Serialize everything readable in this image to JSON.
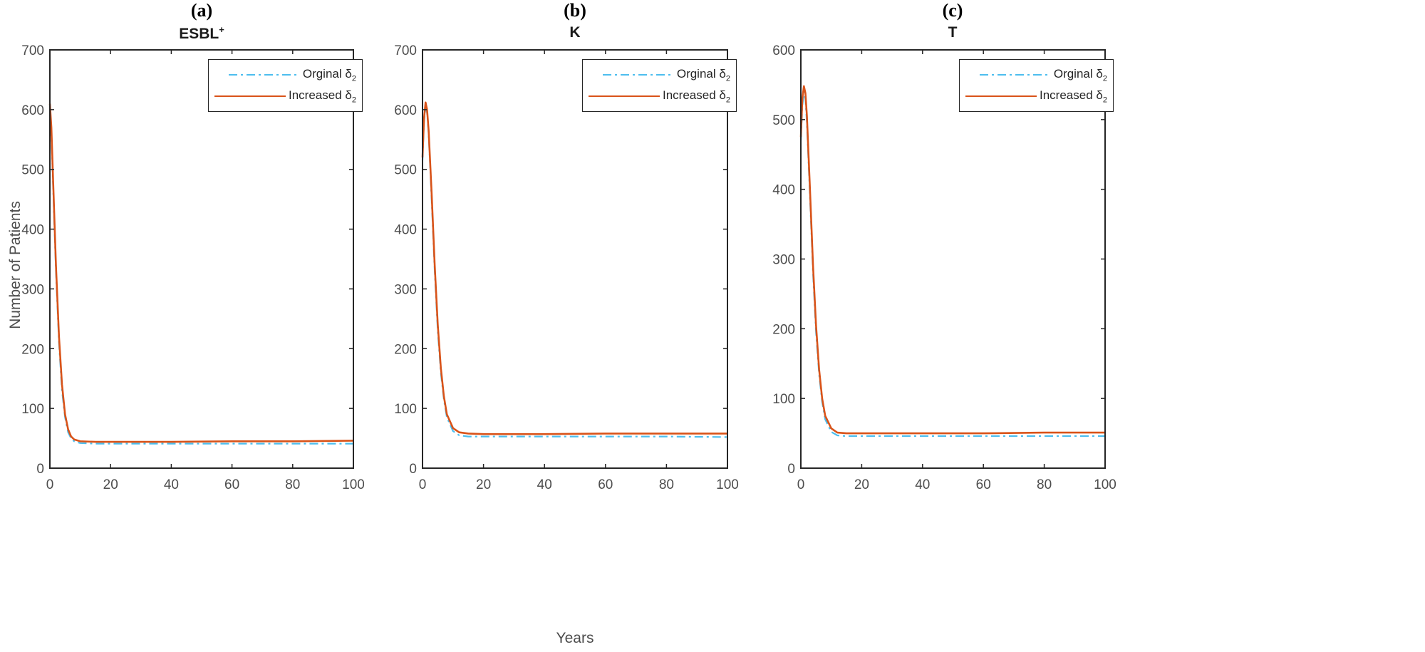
{
  "figure": {
    "panels": [
      {
        "letter": "(a)",
        "title": "ESBL",
        "title_sup": "+"
      },
      {
        "letter": "(b)",
        "title": "K",
        "title_sup": ""
      },
      {
        "letter": "(c)",
        "title": "T",
        "title_sup": ""
      }
    ],
    "ylabel": "Number of Patients",
    "xlabel": "Years",
    "legend": {
      "series_1": {
        "label": "Orginal δ",
        "sub": "2"
      },
      "series_2": {
        "label": "Increased δ",
        "sub": "2"
      }
    },
    "colors": {
      "original": "#4DBEEE",
      "increased": "#D95319",
      "axis": "#262626"
    }
  },
  "chart_data": [
    {
      "type": "line",
      "title": "ESBL+",
      "panel": "(a)",
      "xlabel": "Years",
      "ylabel": "Number of Patients",
      "xlim": [
        0,
        100
      ],
      "ylim": [
        0,
        700
      ],
      "xticks": [
        0,
        20,
        40,
        60,
        80,
        100
      ],
      "yticks": [
        0,
        100,
        200,
        300,
        400,
        500,
        600,
        700
      ],
      "grid": false,
      "legend_position": "upper right",
      "x": [
        0,
        0.5,
        1,
        2,
        3,
        4,
        5,
        6,
        7,
        8,
        10,
        15,
        20,
        40,
        60,
        80,
        100
      ],
      "series": [
        {
          "name": "Orginal δ2",
          "style": "dash-dot",
          "color": "#4DBEEE",
          "values": [
            600,
            560,
            480,
            330,
            210,
            130,
            85,
            60,
            50,
            45,
            42,
            41,
            41,
            41,
            41,
            41,
            41
          ]
        },
        {
          "name": "Increased δ2",
          "style": "solid",
          "color": "#D95319",
          "values": [
            610,
            570,
            490,
            340,
            220,
            140,
            90,
            65,
            53,
            48,
            45,
            44,
            44,
            44,
            45,
            45,
            46
          ]
        }
      ]
    },
    {
      "type": "line",
      "title": "K",
      "panel": "(b)",
      "xlabel": "Years",
      "ylabel": "",
      "xlim": [
        0,
        100
      ],
      "ylim": [
        0,
        700
      ],
      "xticks": [
        0,
        20,
        40,
        60,
        80,
        100
      ],
      "yticks": [
        0,
        100,
        200,
        300,
        400,
        500,
        600,
        700
      ],
      "grid": false,
      "legend_position": "upper right",
      "x": [
        0,
        0.5,
        1,
        1.5,
        2,
        3,
        4,
        5,
        6,
        7,
        8,
        10,
        12,
        15,
        20,
        40,
        60,
        80,
        100
      ],
      "series": [
        {
          "name": "Orginal δ2",
          "style": "dash-dot",
          "color": "#4DBEEE",
          "values": [
            515,
            580,
            605,
            595,
            560,
            450,
            330,
            230,
            160,
            115,
            85,
            62,
            55,
            53,
            53,
            53,
            53,
            53,
            52
          ]
        },
        {
          "name": "Increased δ2",
          "style": "solid",
          "color": "#D95319",
          "values": [
            520,
            585,
            612,
            600,
            565,
            460,
            340,
            240,
            168,
            120,
            90,
            67,
            60,
            58,
            57,
            57,
            58,
            58,
            58
          ]
        }
      ]
    },
    {
      "type": "line",
      "title": "T",
      "panel": "(c)",
      "xlabel": "Years",
      "ylabel": "",
      "xlim": [
        0,
        100
      ],
      "ylim": [
        0,
        600
      ],
      "xticks": [
        0,
        20,
        40,
        60,
        80,
        100
      ],
      "yticks": [
        0,
        100,
        200,
        300,
        400,
        500,
        600
      ],
      "grid": false,
      "legend_position": "upper right",
      "x": [
        0,
        0.5,
        1,
        1.5,
        2,
        3,
        4,
        5,
        6,
        7,
        8,
        10,
        12,
        15,
        20,
        40,
        60,
        80,
        100
      ],
      "series": [
        {
          "name": "Orginal δ2",
          "style": "dash-dot",
          "color": "#4DBEEE",
          "values": [
            470,
            520,
            540,
            530,
            495,
            390,
            280,
            195,
            135,
            95,
            70,
            52,
            47,
            46,
            46,
            46,
            46,
            46,
            46
          ]
        },
        {
          "name": "Increased δ2",
          "style": "solid",
          "color": "#D95319",
          "values": [
            475,
            530,
            548,
            538,
            505,
            400,
            290,
            205,
            142,
            100,
            75,
            57,
            51,
            50,
            50,
            50,
            50,
            51,
            51
          ]
        }
      ]
    }
  ]
}
